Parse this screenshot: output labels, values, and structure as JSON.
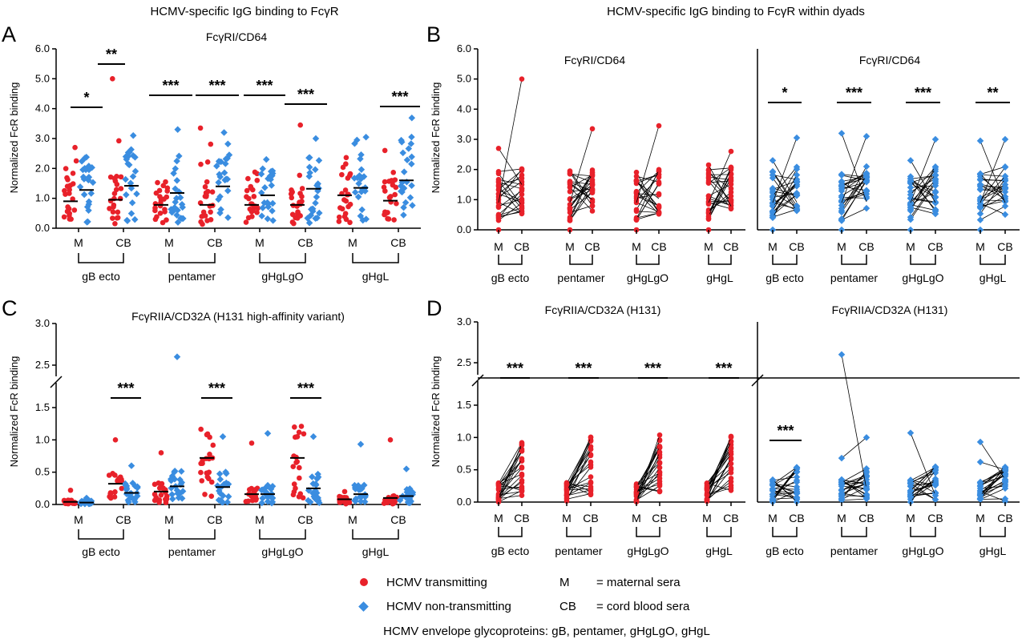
{
  "titles": {
    "left": "HCMV-specific IgG binding to FcγR",
    "right": "HCMV-specific IgG binding to FcγR within dyads"
  },
  "panel_letters": [
    "A",
    "B",
    "C",
    "D"
  ],
  "legend": {
    "transmitting": "HCMV transmitting",
    "non_transmitting": "HCMV non-transmitting",
    "m_abbr": "M",
    "m_def": "= maternal sera",
    "cb_abbr": "CB",
    "cb_def": "= cord blood sera",
    "footer": "HCMV envelope glycoproteins: gB, pentamer, gHgLgO, gHgL"
  },
  "colors": {
    "transmitting": "#e8212a",
    "non_transmitting": "#3a8de0",
    "line": "#000000"
  },
  "chart_data": [
    {
      "id": "A",
      "type": "scatter",
      "title": "FcγRI/CD64",
      "ylabel": "Normalized FcR binding",
      "ylim": [
        0,
        6
      ],
      "yticks": [
        "0.0",
        "1.0",
        "2.0",
        "3.0",
        "4.0",
        "5.0",
        "6.0"
      ],
      "groups": [
        "gB ecto",
        "pentamer",
        "gHgLgO",
        "gHgL"
      ],
      "tick_labels": [
        "M",
        "CB"
      ],
      "medians": {
        "transmitting": [
          0.9,
          0.95,
          0.78,
          0.78,
          0.78,
          0.78,
          1.1,
          0.92
        ],
        "non_transmitting": [
          1.28,
          1.42,
          1.18,
          1.4,
          1.1,
          1.32,
          1.35,
          1.6
        ]
      },
      "max_points": [
        2.7,
        5.0,
        1.55,
        3.35,
        1.6,
        3.45,
        2.15,
        2.6
      ],
      "max_points_nt": [
        2.35,
        3.1,
        3.3,
        3.2,
        2.3,
        3.0,
        2.95,
        3.05
      ],
      "significance": [
        {
          "group": 0,
          "stars": "*",
          "y": 3.8
        },
        {
          "group": 0,
          "pair": "CB",
          "stars": "**",
          "y": 5.4
        },
        {
          "group": 1,
          "pair": "M",
          "stars": "***",
          "y": 4.4
        },
        {
          "group": 1,
          "pair": "CB",
          "stars": "***",
          "y": 4.4
        },
        {
          "group": 2,
          "pair": "M",
          "stars": "***",
          "y": 4.4
        },
        {
          "group": 2,
          "pair": "CB",
          "stars": "***",
          "y": 4.1
        },
        {
          "group": 3,
          "pair": "CB",
          "stars": "***",
          "y": 4.1
        }
      ]
    },
    {
      "id": "B",
      "type": "line",
      "title_left": "FcγRI/CD64",
      "title_right": "FcγRI/CD64",
      "ylabel": "Normalized FcR binding",
      "ylim": [
        0,
        6
      ],
      "yticks": [
        "0.0",
        "1.0",
        "2.0",
        "3.0",
        "4.0",
        "5.0",
        "6.0"
      ],
      "groups": [
        "gB ecto",
        "pentamer",
        "gHgLgO",
        "gHgL"
      ],
      "tick_labels": [
        "M",
        "CB"
      ],
      "significance_right": [
        "*",
        "***",
        "***",
        "**"
      ]
    },
    {
      "id": "C",
      "type": "scatter",
      "title": "FcγRIIA/CD32A (H131 high-affinity variant)",
      "ylabel": "Normalized FcR binding",
      "ylim": [
        0,
        3
      ],
      "yticks": [
        "0.0",
        "0.5",
        "1.0",
        "1.5",
        "2.5",
        "3.0"
      ],
      "groups": [
        "gB ecto",
        "pentamer",
        "gHgLgO",
        "gHgL"
      ],
      "tick_labels": [
        "M",
        "CB"
      ],
      "medians": {
        "transmitting": [
          0.04,
          0.32,
          0.2,
          0.72,
          0.16,
          0.72,
          0.08,
          0.1
        ],
        "non_transmitting": [
          0.03,
          0.18,
          0.28,
          0.27,
          0.16,
          0.25,
          0.16,
          0.13
        ]
      },
      "significance": [
        {
          "group": 0,
          "pair": "CB",
          "stars": "***"
        },
        {
          "group": 1,
          "pair": "CB",
          "stars": "***"
        },
        {
          "group": 2,
          "pair": "CB",
          "stars": "***"
        }
      ]
    },
    {
      "id": "D",
      "type": "line",
      "title_left": "FcγRIIA/CD32A (H131)",
      "title_right": "FcγRIIA/CD32A (H131)",
      "ylabel": "Normalized FcR binding",
      "ylim": [
        0,
        3
      ],
      "yticks": [
        "0.0",
        "0.5",
        "1.0",
        "1.5",
        "2.5",
        "3.0"
      ],
      "groups": [
        "gB ecto",
        "pentamer",
        "gHgLgO",
        "gHgL"
      ],
      "tick_labels": [
        "M",
        "CB"
      ],
      "significance_left": [
        "***",
        "***",
        "***",
        "***"
      ],
      "significance_right": [
        "***"
      ]
    }
  ]
}
